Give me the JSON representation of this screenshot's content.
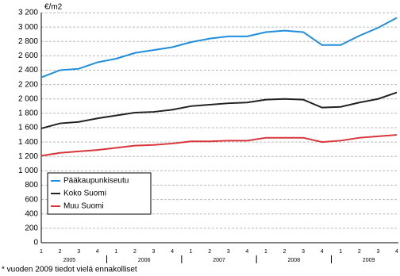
{
  "chart_data": {
    "type": "line",
    "ylabel": "€/m2",
    "footnote": "* vuoden 2009 tiedot vielä ennakolliset",
    "categories": [
      "1",
      "2",
      "3",
      "4",
      "1",
      "2",
      "3",
      "4",
      "1",
      "2",
      "3",
      "4",
      "1",
      "2",
      "3",
      "4",
      "1",
      "2",
      "3",
      "4"
    ],
    "years": [
      "2005",
      "2006",
      "2007",
      "2008",
      "2009"
    ],
    "ylim": [
      0,
      3200
    ],
    "yticks": [
      0,
      200,
      400,
      600,
      800,
      {
        "value": 1000,
        "label": "1 000"
      },
      {
        "value": 1200,
        "label": "1 200"
      },
      {
        "value": 1400,
        "label": "1 400"
      },
      {
        "value": 1600,
        "label": "1 600"
      },
      {
        "value": 1800,
        "label": "1 800"
      },
      {
        "value": 2000,
        "label": "2 000"
      },
      {
        "value": 2200,
        "label": "2 200"
      },
      {
        "value": 2400,
        "label": "2 400"
      },
      {
        "value": 2600,
        "label": "2 600"
      },
      {
        "value": 2800,
        "label": "2 800"
      },
      {
        "value": 3000,
        "label": "3 000"
      },
      {
        "value": 3200,
        "label": "3 200"
      }
    ],
    "grid": true,
    "legend": "lower-left",
    "series": [
      {
        "name": "Pääkaupunkiseutu",
        "color": "#1e8ee0",
        "values": [
          2300,
          2400,
          2420,
          2510,
          2560,
          2640,
          2680,
          2720,
          2790,
          2840,
          2870,
          2870,
          2930,
          2950,
          2930,
          2750,
          2750,
          2880,
          2990,
          3130
        ]
      },
      {
        "name": "Koko Suomi",
        "color": "#222222",
        "values": [
          1590,
          1660,
          1680,
          1730,
          1770,
          1810,
          1820,
          1850,
          1900,
          1920,
          1940,
          1950,
          1990,
          2000,
          1990,
          1880,
          1890,
          1950,
          2000,
          2090
        ]
      },
      {
        "name": "Muu Suomi",
        "color": "#d9343a",
        "values": [
          1210,
          1250,
          1270,
          1290,
          1320,
          1350,
          1360,
          1380,
          1410,
          1410,
          1420,
          1420,
          1460,
          1460,
          1460,
          1400,
          1420,
          1460,
          1480,
          1500
        ]
      }
    ]
  }
}
